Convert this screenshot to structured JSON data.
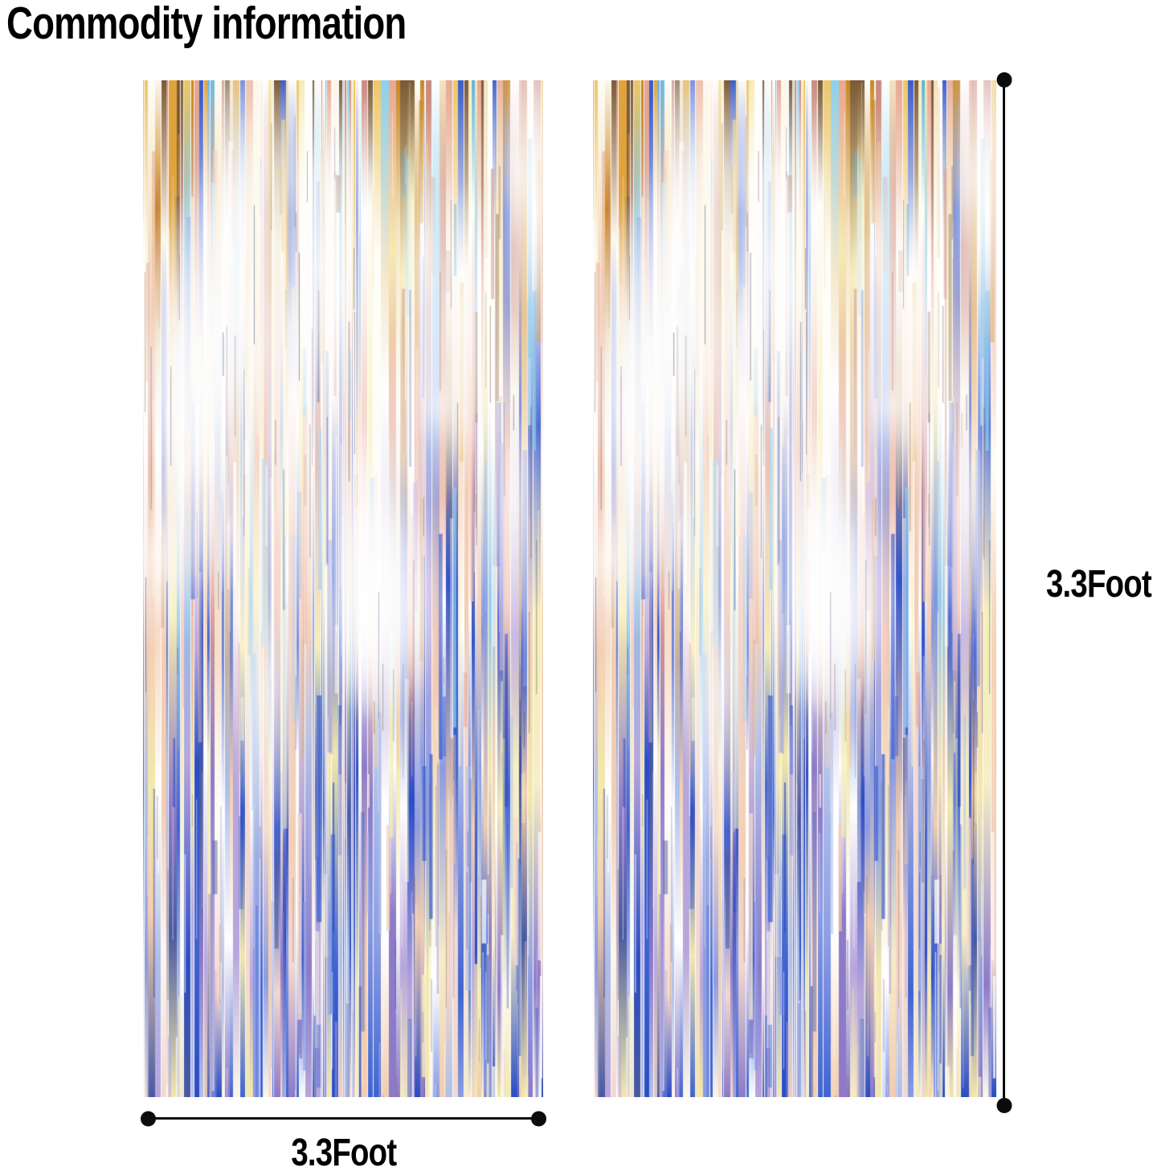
{
  "page": {
    "title": "Commodity information",
    "background_color": "#ffffff",
    "text_color": "#000000"
  },
  "measurements": {
    "height_label": "3.3Foot",
    "width_label": "3.3Foot",
    "line_color": "#0c0c0c"
  },
  "curtain_palette": {
    "top": [
      "#ffffff",
      "#fdf6ea",
      "#f3e3c2",
      "#e0a33c",
      "#c9861f",
      "#edc768",
      "#8fd0ee",
      "#5fb1e0",
      "#3b5ccc",
      "#e8a891",
      "#c98b7e",
      "#7c5a38",
      "#f6e9ae",
      "#fffdf6"
    ],
    "mid": [
      "#ffffff",
      "#fdf4ec",
      "#f6d7bd",
      "#f0bfae",
      "#e59f89",
      "#f7eeb2",
      "#8ec6e9",
      "#8296dc",
      "#3252c8",
      "#cfa77a",
      "#bda9dc",
      "#fffdf8",
      "#f3cdb6"
    ],
    "bottom": [
      "#2b4cc3",
      "#3f64d2",
      "#8b9ce2",
      "#aebfe9",
      "#f6eec6",
      "#f3e9ad",
      "#ffffff",
      "#f3d8cf",
      "#f2cdb0",
      "#b6a6dc",
      "#8d7ac8",
      "#4a5aa0",
      "#fdf8ea"
    ]
  }
}
